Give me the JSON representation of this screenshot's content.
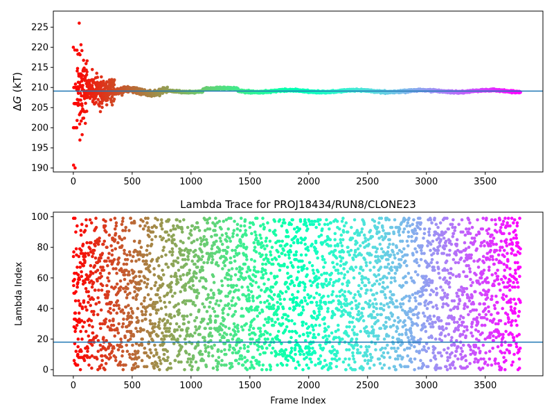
{
  "figure": {
    "background": "#ffffff",
    "axis_color": "#000000",
    "hline_color": "#1f77b4",
    "colormap": "rainbow"
  },
  "chart_data": [
    {
      "type": "scatter",
      "title": "",
      "xlabel": "",
      "ylabel": "ΔG (kT)",
      "ylabel_parts": {
        "symbol": "Δ",
        "var": "G",
        "unit": " (kT)"
      },
      "xlim": [
        -170,
        3990
      ],
      "ylim": [
        189,
        229
      ],
      "xticks": [
        0,
        500,
        1000,
        1500,
        2000,
        2500,
        3000,
        3500
      ],
      "yticks": [
        190,
        195,
        200,
        205,
        210,
        215,
        220,
        225
      ],
      "hline": 209.1,
      "n_points": 3800,
      "convergence": {
        "description_points": [
          [
            0,
            190
          ],
          [
            20,
            200
          ],
          [
            20,
            220
          ],
          [
            30,
            220
          ],
          [
            50,
            226
          ],
          [
            100,
            205
          ],
          [
            200,
            206
          ],
          [
            300,
            211
          ],
          [
            500,
            208.5
          ],
          [
            700,
            210
          ],
          [
            1200,
            210
          ],
          [
            1500,
            209
          ],
          [
            2500,
            209
          ],
          [
            3800,
            209.2
          ]
        ],
        "final_value": 209.1
      }
    },
    {
      "type": "scatter",
      "title": "Lambda Trace for PROJ18434/RUN8/CLONE23",
      "xlabel": "Frame Index",
      "ylabel": "Lambda Index",
      "xlim": [
        -170,
        3990
      ],
      "ylim": [
        -4,
        103
      ],
      "xticks": [
        0,
        500,
        1000,
        1500,
        2000,
        2500,
        3000,
        3500
      ],
      "yticks": [
        0,
        20,
        40,
        60,
        80,
        100
      ],
      "hline": 18,
      "n_points": 3800,
      "value_range": [
        0,
        99
      ]
    }
  ]
}
